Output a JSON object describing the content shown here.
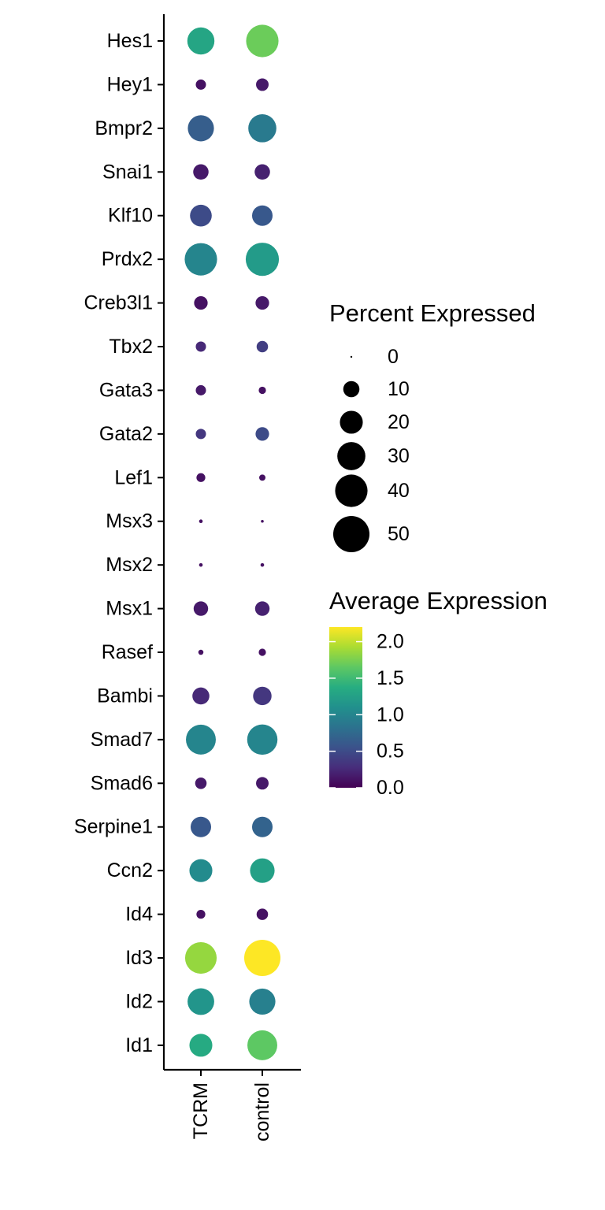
{
  "chart_data": {
    "type": "dotplot",
    "x_categories": [
      "TCRM",
      "control"
    ],
    "y_categories": [
      "Hes1",
      "Hey1",
      "Bmpr2",
      "Snai1",
      "Klf10",
      "Prdx2",
      "Creb3l1",
      "Tbx2",
      "Gata3",
      "Gata2",
      "Lef1",
      "Msx3",
      "Msx2",
      "Msx1",
      "Rasef",
      "Bambi",
      "Smad7",
      "Smad6",
      "Serpine1",
      "Ccn2",
      "Id4",
      "Id3",
      "Id2",
      "Id1"
    ],
    "points": [
      {
        "gene": "Hes1",
        "group": "TCRM",
        "pct": 28,
        "avg": 1.3
      },
      {
        "gene": "Hes1",
        "group": "control",
        "pct": 40,
        "avg": 1.7
      },
      {
        "gene": "Hey1",
        "group": "TCRM",
        "pct": 4,
        "avg": 0.1
      },
      {
        "gene": "Hey1",
        "group": "control",
        "pct": 6,
        "avg": 0.15
      },
      {
        "gene": "Bmpr2",
        "group": "TCRM",
        "pct": 26,
        "avg": 0.65
      },
      {
        "gene": "Bmpr2",
        "group": "control",
        "pct": 30,
        "avg": 0.9
      },
      {
        "gene": "Snai1",
        "group": "TCRM",
        "pct": 9,
        "avg": 0.15
      },
      {
        "gene": "Snai1",
        "group": "control",
        "pct": 9,
        "avg": 0.2
      },
      {
        "gene": "Klf10",
        "group": "TCRM",
        "pct": 18,
        "avg": 0.5
      },
      {
        "gene": "Klf10",
        "group": "control",
        "pct": 16,
        "avg": 0.6
      },
      {
        "gene": "Prdx2",
        "group": "TCRM",
        "pct": 40,
        "avg": 1.0
      },
      {
        "gene": "Prdx2",
        "group": "control",
        "pct": 42,
        "avg": 1.2
      },
      {
        "gene": "Creb3l1",
        "group": "TCRM",
        "pct": 7,
        "avg": 0.1
      },
      {
        "gene": "Creb3l1",
        "group": "control",
        "pct": 7,
        "avg": 0.15
      },
      {
        "gene": "Tbx2",
        "group": "TCRM",
        "pct": 4,
        "avg": 0.25
      },
      {
        "gene": "Tbx2",
        "group": "control",
        "pct": 5,
        "avg": 0.4
      },
      {
        "gene": "Gata3",
        "group": "TCRM",
        "pct": 4,
        "avg": 0.15
      },
      {
        "gene": "Gata3",
        "group": "control",
        "pct": 2,
        "avg": 0.1
      },
      {
        "gene": "Gata2",
        "group": "TCRM",
        "pct": 4,
        "avg": 0.35
      },
      {
        "gene": "Gata2",
        "group": "control",
        "pct": 7,
        "avg": 0.5
      },
      {
        "gene": "Lef1",
        "group": "TCRM",
        "pct": 3,
        "avg": 0.1
      },
      {
        "gene": "Lef1",
        "group": "control",
        "pct": 1.5,
        "avg": 0.1
      },
      {
        "gene": "Msx3",
        "group": "TCRM",
        "pct": 0.5,
        "avg": 0.1
      },
      {
        "gene": "Msx3",
        "group": "control",
        "pct": 0.3,
        "avg": 0.1
      },
      {
        "gene": "Msx2",
        "group": "TCRM",
        "pct": 0.5,
        "avg": 0.1
      },
      {
        "gene": "Msx2",
        "group": "control",
        "pct": 0.5,
        "avg": 0.1
      },
      {
        "gene": "Msx1",
        "group": "TCRM",
        "pct": 8,
        "avg": 0.15
      },
      {
        "gene": "Msx1",
        "group": "control",
        "pct": 8,
        "avg": 0.2
      },
      {
        "gene": "Rasef",
        "group": "TCRM",
        "pct": 1,
        "avg": 0.1
      },
      {
        "gene": "Rasef",
        "group": "control",
        "pct": 2,
        "avg": 0.1
      },
      {
        "gene": "Bambi",
        "group": "TCRM",
        "pct": 11,
        "avg": 0.25
      },
      {
        "gene": "Bambi",
        "group": "control",
        "pct": 13,
        "avg": 0.35
      },
      {
        "gene": "Smad7",
        "group": "TCRM",
        "pct": 34,
        "avg": 1.0
      },
      {
        "gene": "Smad7",
        "group": "control",
        "pct": 35,
        "avg": 1.0
      },
      {
        "gene": "Smad6",
        "group": "TCRM",
        "pct": 5,
        "avg": 0.15
      },
      {
        "gene": "Smad6",
        "group": "control",
        "pct": 6,
        "avg": 0.15
      },
      {
        "gene": "Serpine1",
        "group": "TCRM",
        "pct": 16,
        "avg": 0.6
      },
      {
        "gene": "Serpine1",
        "group": "control",
        "pct": 16,
        "avg": 0.7
      },
      {
        "gene": "Ccn2",
        "group": "TCRM",
        "pct": 20,
        "avg": 1.05
      },
      {
        "gene": "Ccn2",
        "group": "control",
        "pct": 23,
        "avg": 1.25
      },
      {
        "gene": "Id4",
        "group": "TCRM",
        "pct": 3,
        "avg": 0.1
      },
      {
        "gene": "Id4",
        "group": "control",
        "pct": 5,
        "avg": 0.1
      },
      {
        "gene": "Id3",
        "group": "TCRM",
        "pct": 38,
        "avg": 1.85
      },
      {
        "gene": "Id3",
        "group": "control",
        "pct": 50,
        "avg": 2.2
      },
      {
        "gene": "Id2",
        "group": "TCRM",
        "pct": 27,
        "avg": 1.15
      },
      {
        "gene": "Id2",
        "group": "control",
        "pct": 26,
        "avg": 0.95
      },
      {
        "gene": "Id1",
        "group": "TCRM",
        "pct": 20,
        "avg": 1.35
      },
      {
        "gene": "Id1",
        "group": "control",
        "pct": 34,
        "avg": 1.65
      }
    ],
    "size_legend": {
      "title": "Percent Expressed",
      "values": [
        0,
        10,
        20,
        30,
        40,
        50
      ],
      "labels": [
        "0",
        "10",
        "20",
        "30",
        "40",
        "50"
      ]
    },
    "color_legend": {
      "title": "Average Expression",
      "range": [
        0.0,
        2.2
      ],
      "ticks": [
        0.0,
        0.5,
        1.0,
        1.5,
        2.0
      ],
      "tick_labels": [
        "0.0",
        "0.5",
        "1.0",
        "1.5",
        "2.0"
      ],
      "colormap": "viridis"
    },
    "colors": [
      "#440154",
      "#472d7b",
      "#3b528b",
      "#2c728e",
      "#21908d",
      "#27ad81",
      "#5dc863",
      "#aadc32",
      "#fde725"
    ]
  }
}
